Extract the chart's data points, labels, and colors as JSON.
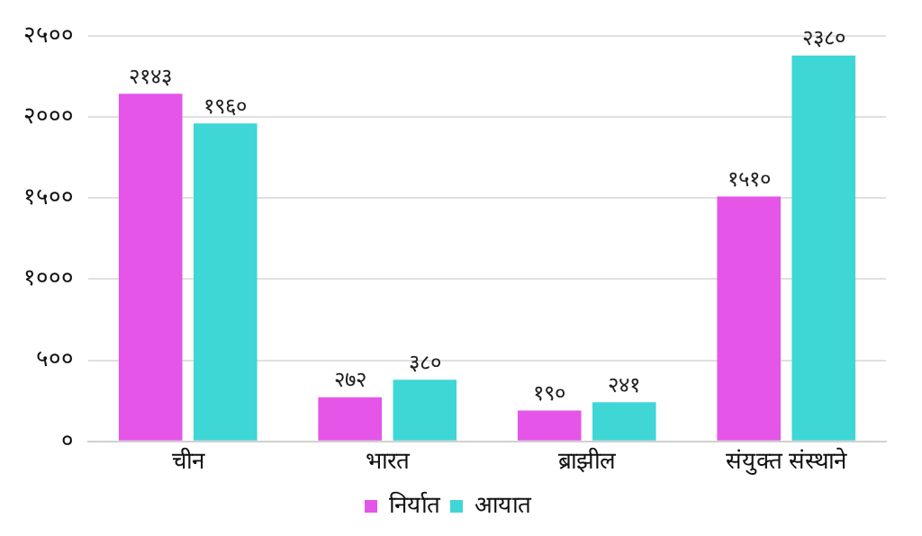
{
  "chart_data": {
    "type": "bar",
    "categories": [
      "चीन",
      "भारत",
      "ब्राझील",
      "संयुक्त संस्थाने"
    ],
    "series": [
      {
        "name": "निर्यात",
        "color": "#e455e8",
        "values": [
          2143,
          272,
          190,
          1510
        ],
        "value_labels": [
          "२१४३",
          "२७२",
          "१९०",
          "१५१०"
        ]
      },
      {
        "name": "आयात",
        "color": "#3fd6d6",
        "values": [
          1960,
          380,
          241,
          2380
        ],
        "value_labels": [
          "१९६०",
          "३८०",
          "२४१",
          "२३८०"
        ]
      }
    ],
    "ylim": [
      0,
      2500
    ],
    "yticks": [
      {
        "value": 0,
        "label": "०"
      },
      {
        "value": 500,
        "label": "५००"
      },
      {
        "value": 1000,
        "label": "१०००"
      },
      {
        "value": 1500,
        "label": "१५००"
      },
      {
        "value": 2000,
        "label": "२०००"
      },
      {
        "value": 2500,
        "label": "२५००"
      }
    ],
    "grid": "y",
    "legend": "bottom"
  }
}
